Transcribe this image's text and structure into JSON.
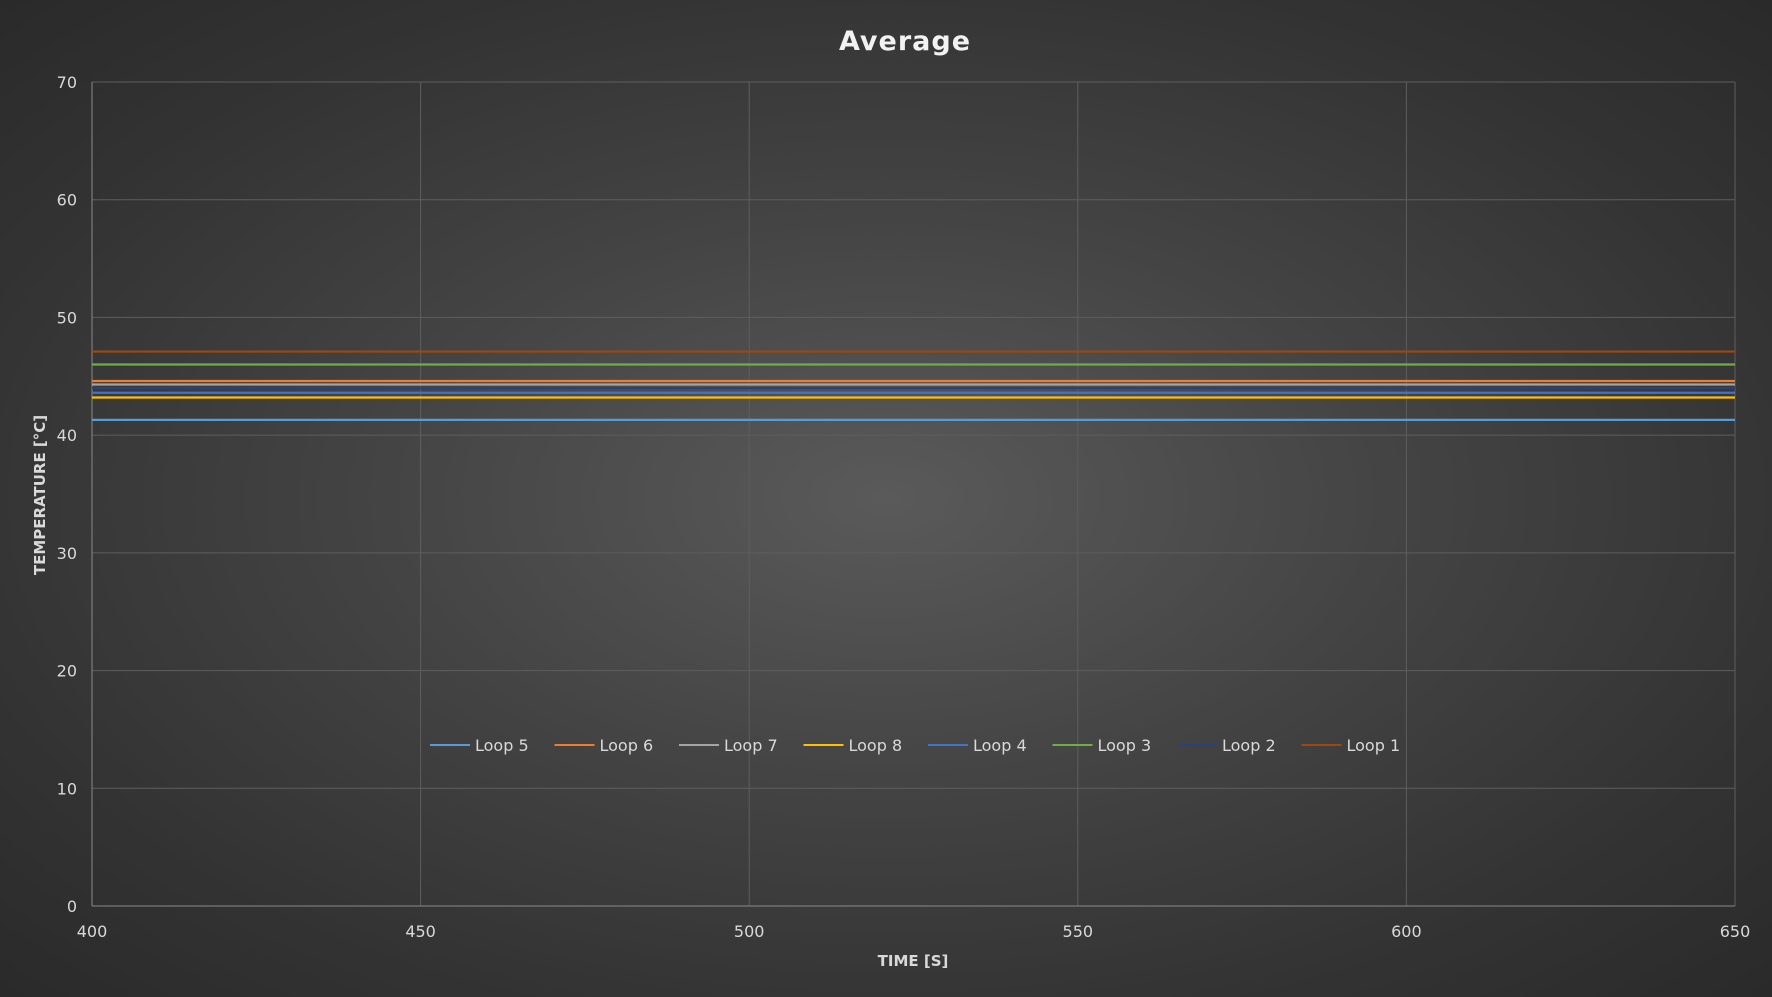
{
  "chart_data": {
    "type": "line",
    "title": "Average",
    "xlabel": "TIME [S]",
    "ylabel": "TEMPERATURE [°C]",
    "xlim": [
      400,
      650
    ],
    "ylim": [
      0,
      70
    ],
    "x_ticks": [
      400,
      450,
      500,
      550,
      600,
      650
    ],
    "y_ticks": [
      0,
      10,
      20,
      30,
      40,
      50,
      60,
      70
    ],
    "grid": true,
    "legend_position": "center",
    "series": [
      {
        "name": "Loop 5",
        "color": "#5b9bd5",
        "x": [
          400,
          650
        ],
        "y": [
          41.3,
          41.3
        ]
      },
      {
        "name": "Loop 6",
        "color": "#ed7d31",
        "x": [
          400,
          650
        ],
        "y": [
          44.6,
          44.6
        ]
      },
      {
        "name": "Loop 7",
        "color": "#a5a5a5",
        "x": [
          400,
          650
        ],
        "y": [
          44.3,
          44.3
        ]
      },
      {
        "name": "Loop 8",
        "color": "#ffc000",
        "x": [
          400,
          650
        ],
        "y": [
          43.2,
          43.2
        ]
      },
      {
        "name": "Loop 4",
        "color": "#4472c4",
        "x": [
          400,
          650
        ],
        "y": [
          43.6,
          43.6
        ]
      },
      {
        "name": "Loop 3",
        "color": "#70ad47",
        "x": [
          400,
          650
        ],
        "y": [
          46.0,
          46.0
        ]
      },
      {
        "name": "Loop 2",
        "color": "#264478",
        "x": [
          400,
          650
        ],
        "y": [
          44.0,
          44.0
        ]
      },
      {
        "name": "Loop 1",
        "color": "#9e480e",
        "x": [
          400,
          650
        ],
        "y": [
          47.1,
          47.1
        ]
      }
    ]
  }
}
